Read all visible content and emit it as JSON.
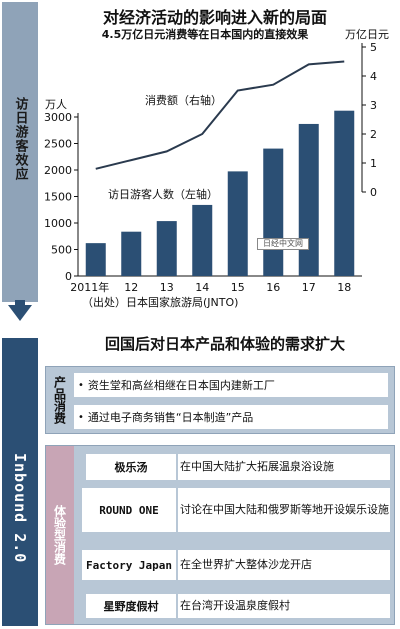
{
  "side_top_label": "访日游客效应",
  "side_bottom_label": "Inbound 2.0",
  "title": "对经济活动的影响进入新的局面",
  "subtitle": "4.5万亿日元消费等在日本国内的直接效果",
  "unit_right": "万亿日元",
  "unit_left": "万人",
  "source": "（出处）日本国家旅游局(JNTO)",
  "logo_text": "日经中文网",
  "chart_data": {
    "type": "bar+line",
    "categories": [
      "2011年",
      "12",
      "13",
      "14",
      "15",
      "16",
      "17",
      "18"
    ],
    "series": [
      {
        "name": "访日游客人数（左轴）",
        "type": "bar",
        "axis": "left",
        "color": "#2b4f74",
        "values": [
          620,
          836,
          1036,
          1341,
          1974,
          2404,
          2869,
          3119
        ]
      },
      {
        "name": "消费额（右轴）",
        "type": "line",
        "axis": "right",
        "color": "#2a3a4e",
        "values": [
          0.8,
          1.1,
          1.4,
          2.0,
          3.5,
          3.7,
          4.4,
          4.5
        ]
      }
    ],
    "y_left": {
      "min": 0,
      "max": 3000,
      "ticks": [
        0,
        500,
        1000,
        1500,
        2000,
        2500,
        3000
      ]
    },
    "y_right": {
      "min": 0,
      "max": 5,
      "ticks": [
        0,
        1,
        2,
        3,
        4,
        5
      ]
    }
  },
  "section2_title": "回国后对日本产品和体验的需求扩大",
  "product": {
    "label": "产品消费",
    "items": [
      "资生堂和高丝相继在日本国内建新工厂",
      "通过电子商务销售“日本制造”产品"
    ]
  },
  "experience": {
    "label": "体验型消费",
    "rows": [
      {
        "name": "极乐汤",
        "desc": "在中国大陆扩大拓展温泉浴设施"
      },
      {
        "name": "ROUND ONE",
        "desc": "讨论在中国大陆和俄罗斯等地开设娱乐设施"
      },
      {
        "name": "Factory Japan",
        "desc": "在全世界扩大整体沙龙开店"
      },
      {
        "name": "星野度假村",
        "desc": "在台湾开设温泉度假村"
      }
    ]
  },
  "colors": {
    "navy": "#2b4f74",
    "steel": "#8fa3b8",
    "box": "#b8c7d6",
    "pink": "#c8a5b5"
  }
}
